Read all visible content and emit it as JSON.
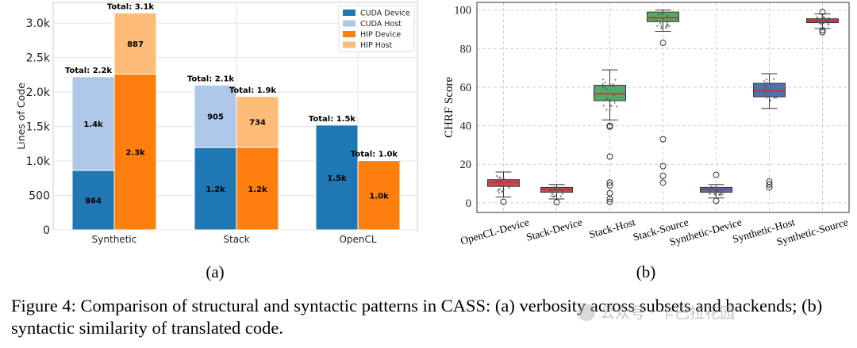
{
  "chart_data": [
    {
      "type": "bar",
      "stacked": true,
      "ylabel": "Lines of Code",
      "ylim": [
        0,
        3300
      ],
      "yticks": [
        0,
        500,
        1000,
        1500,
        2000,
        2500,
        3000
      ],
      "ytick_labels": [
        "0",
        "500",
        "1.0k",
        "1.5k",
        "2.0k",
        "2.5k",
        "3.0k"
      ],
      "categories": [
        "Synthetic",
        "Stack",
        "OpenCL"
      ],
      "legend": [
        {
          "name": "CUDA Device",
          "color": "#1f77b4"
        },
        {
          "name": "CUDA Host",
          "color": "#aec7e8"
        },
        {
          "name": "HIP Device",
          "color": "#ff7f0e"
        },
        {
          "name": "HIP Host",
          "color": "#ffbb78"
        }
      ],
      "legend_position": "top-right",
      "bars": [
        {
          "category": "Synthetic",
          "backend": "CUDA",
          "segments": [
            {
              "name": "CUDA Device",
              "value": 864,
              "label": "864"
            },
            {
              "name": "CUDA Host",
              "value": 1357,
              "label": "1.4k"
            }
          ],
          "total_label": "Total: 2.2k"
        },
        {
          "category": "Synthetic",
          "backend": "HIP",
          "segments": [
            {
              "name": "HIP Device",
              "value": 2260,
              "label": "2.3k"
            },
            {
              "name": "HIP Host",
              "value": 887,
              "label": "887"
            }
          ],
          "total_label": "Total: 3.1k"
        },
        {
          "category": "Stack",
          "backend": "CUDA",
          "segments": [
            {
              "name": "CUDA Device",
              "value": 1195,
              "label": "1.2k"
            },
            {
              "name": "CUDA Host",
              "value": 905,
              "label": "905"
            }
          ],
          "total_label": "Total: 2.1k"
        },
        {
          "category": "Stack",
          "backend": "HIP",
          "segments": [
            {
              "name": "HIP Device",
              "value": 1200,
              "label": "1.2k"
            },
            {
              "name": "HIP Host",
              "value": 734,
              "label": "734"
            }
          ],
          "total_label": "Total: 1.9k"
        },
        {
          "category": "OpenCL",
          "backend": "CUDA",
          "segments": [
            {
              "name": "CUDA Device",
              "value": 1520,
              "label": "1.5k"
            }
          ],
          "total_label": "Total: 1.5k"
        },
        {
          "category": "OpenCL",
          "backend": "HIP",
          "segments": [
            {
              "name": "HIP Device",
              "value": 1005,
              "label": "1.0k"
            }
          ],
          "total_label": "Total: 1.0k"
        }
      ],
      "panel_label": "(a)"
    },
    {
      "type": "box",
      "ylabel": "CHRF Score",
      "ylim": [
        -5,
        104
      ],
      "yticks": [
        0,
        20,
        40,
        60,
        80,
        100
      ],
      "categories": [
        "OpenCL-Device",
        "Stack-Device",
        "Stack-Host",
        "Stack-Source",
        "Synthetic-Device",
        "Synthetic-Host",
        "Synthetic-Source"
      ],
      "boxes": [
        {
          "name": "OpenCL-Device",
          "color": "#c44e52",
          "whisker_low": 3,
          "q1": 8.5,
          "median": 10.5,
          "q3": 12,
          "whisker_high": 16,
          "outliers": [
            0.5
          ]
        },
        {
          "name": "Stack-Device",
          "color": "#c44e52",
          "whisker_low": 2,
          "q1": 5.5,
          "median": 6.8,
          "q3": 8,
          "whisker_high": 9.5,
          "outliers": [
            0.3
          ]
        },
        {
          "name": "Stack-Host",
          "color": "#55a868",
          "whisker_low": 43,
          "q1": 53,
          "median": 56.5,
          "q3": 61,
          "whisker_high": 69,
          "outliers": [
            40,
            39.5,
            24,
            10.5,
            9,
            5,
            2,
            0.5
          ]
        },
        {
          "name": "Stack-Source",
          "color": "#55a868",
          "whisker_low": 89,
          "q1": 94,
          "median": 96,
          "q3": 99,
          "whisker_high": 100,
          "outliers": [
            83,
            33,
            19,
            14,
            10.5
          ]
        },
        {
          "name": "Synthetic-Device",
          "color": "#4c72b0",
          "whisker_low": 2.5,
          "q1": 5.5,
          "median": 7,
          "q3": 8,
          "whisker_high": 9.5,
          "outliers": [
            14.5,
            1
          ]
        },
        {
          "name": "Synthetic-Host",
          "color": "#4c72b0",
          "whisker_low": 49,
          "q1": 55,
          "median": 58,
          "q3": 62,
          "whisker_high": 67,
          "outliers": [
            11,
            9.5,
            8
          ]
        },
        {
          "name": "Synthetic-Source",
          "color": "#4c72b0",
          "whisker_low": 90.5,
          "q1": 93.5,
          "median": 94.5,
          "q3": 95.5,
          "whisker_high": 98,
          "outliers": [
            99,
            89.5,
            88.5
          ]
        }
      ],
      "panel_label": "(b)"
    }
  ],
  "caption": "Figure 4: Comparison of structural and syntactic patterns in CASS: (a) verbosity across subsets and backends; (b) syntactic similarity of translated code.",
  "watermark": "公众号 · 卡巴拉花园"
}
